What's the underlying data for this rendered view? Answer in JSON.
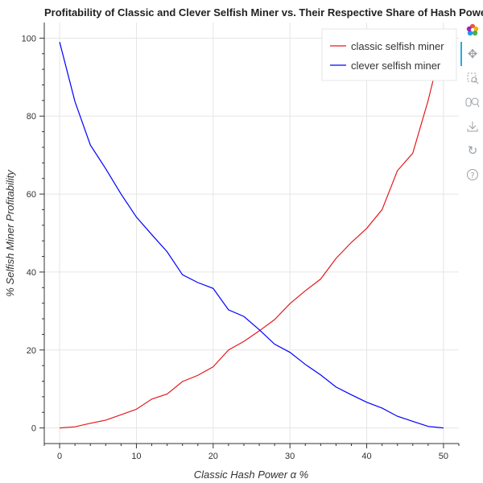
{
  "chart_data": {
    "type": "line",
    "title": "Profitability of Classic and Clever Selfish Miner vs. Their Respective Share of Hash Power",
    "xlabel": "Classic Hash Power α %",
    "ylabel": "% Selfish Miner Profitability",
    "xlim": [
      -2,
      52
    ],
    "ylim": [
      -4,
      104
    ],
    "xticks": [
      0,
      10,
      20,
      30,
      40,
      50
    ],
    "yticks": [
      0,
      20,
      40,
      60,
      80,
      100
    ],
    "grid": true,
    "legend_position": "top-right",
    "x": [
      0,
      2,
      4,
      6,
      8,
      10,
      12,
      14,
      16,
      18,
      20,
      22,
      24,
      26,
      28,
      30,
      32,
      34,
      36,
      38,
      40,
      42,
      44,
      46,
      48,
      50
    ],
    "series": [
      {
        "name": "classic selfish miner",
        "color": "#e41a1c",
        "values": [
          0,
          0.3,
          1.2,
          2.0,
          3.4,
          4.8,
          7.4,
          8.7,
          11.9,
          13.5,
          15.7,
          20.0,
          22.2,
          24.9,
          27.8,
          31.9,
          35.2,
          38.2,
          43.5,
          47.6,
          51.2,
          56.0,
          66.0,
          70.5,
          84.0,
          100
        ]
      },
      {
        "name": "clever selfish miner",
        "color": "#0000ff",
        "values": [
          99,
          83.7,
          72.6,
          66.5,
          60.0,
          54.1,
          49.6,
          45.2,
          39.3,
          37.3,
          35.8,
          30.3,
          28.6,
          25.2,
          21.5,
          19.4,
          16.3,
          13.6,
          10.5,
          8.5,
          6.6,
          5.1,
          3.0,
          1.7,
          0.4,
          0
        ]
      }
    ]
  },
  "toolbar": {
    "icons": [
      "bokeh-logo-icon",
      "pan-icon",
      "box-zoom-icon",
      "wheel-zoom-icon",
      "save-icon",
      "reset-icon",
      "help-icon"
    ]
  }
}
